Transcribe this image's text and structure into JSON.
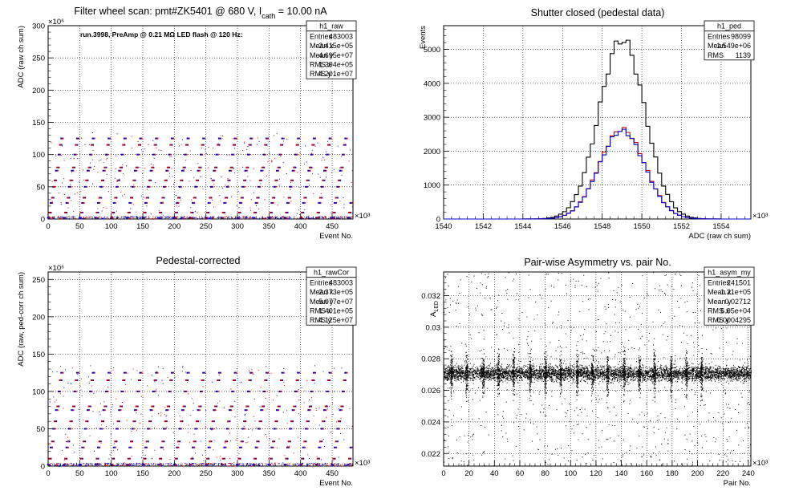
{
  "chart_data": [
    {
      "id": "raw",
      "type": "scatter",
      "title": "Filter wheel scan: pmt#ZK5401 @   680 V, I",
      "title_sub": "cath",
      "title_tail": " = 10.00 nA",
      "annotation": "run.3998, PreAmp @ 0.21 MΩ LED flash @  120 Hz:",
      "xlabel": "Event No.",
      "ylabel": "ADC (raw ch sum)",
      "x_exponent": "×10³",
      "y_exponent": "×10⁶",
      "xlim": [
        0,
        483
      ],
      "ylim": [
        0,
        300
      ],
      "x_ticks": [
        "0",
        "50",
        "100",
        "150",
        "200",
        "250",
        "300",
        "350",
        "400",
        "450"
      ],
      "y_ticks": [
        "0",
        "50",
        "100",
        "150",
        "200",
        "250",
        "300"
      ],
      "grid": true,
      "colors": {
        "series_a": "#0000cc",
        "series_b": "#cc0000"
      },
      "levels": [
        2,
        10,
        25,
        33,
        50,
        60,
        75,
        80,
        100,
        115,
        125
      ],
      "cycle_period": 25,
      "stats": {
        "name": "h1_raw",
        "rows": [
          {
            "label": "Entries",
            "value": "483003"
          },
          {
            "label": "Mean x",
            "value": "2.415e+05"
          },
          {
            "label": "Mean y",
            "value": "4.695e+07"
          },
          {
            "label": "RMS x",
            "value": "1.394e+05"
          },
          {
            "label": "RMS y",
            "value": "4.201e+07"
          }
        ]
      }
    },
    {
      "id": "ped",
      "type": "line",
      "title": "Shutter closed (pedestal data)",
      "xlabel": "ADC (raw ch sum)",
      "ylabel": "Events",
      "x_exponent": "×10³",
      "xlim": [
        1540,
        1555.5
      ],
      "ylim": [
        0,
        5700
      ],
      "x_ticks": [
        "1540",
        "1542",
        "1544",
        "1546",
        "1548",
        "1550",
        "1552",
        "1554"
      ],
      "y_ticks": [
        "0",
        "1000",
        "2000",
        "3000",
        "4000",
        "5000"
      ],
      "grid": true,
      "series": [
        {
          "color": "#000000",
          "mean": 1549.0,
          "sigma": 1.15,
          "peak": 5300
        },
        {
          "color": "#cc0000",
          "mean": 1549.0,
          "sigma": 1.15,
          "peak": 2650
        },
        {
          "color": "#0000cc",
          "mean": 1549.0,
          "sigma": 1.15,
          "peak": 2600
        }
      ],
      "bin_width": 0.2,
      "stats": {
        "name": "h1_ped",
        "rows": [
          {
            "label": "Entries",
            "value": "98099"
          },
          {
            "label": "Mean",
            "value": "1.549e+06"
          },
          {
            "label": "RMS",
            "value": "1139"
          }
        ]
      }
    },
    {
      "id": "rawCor",
      "type": "scatter",
      "title": "Pedestal-corrected",
      "xlabel": "Event No.",
      "ylabel": "ADC (raw, ped-corr ch sum)",
      "x_exponent": "×10³",
      "y_exponent": "×10⁶",
      "xlim": [
        0,
        483
      ],
      "ylim": [
        0,
        260
      ],
      "x_ticks": [
        "0",
        "50",
        "100",
        "150",
        "200",
        "250",
        "300",
        "350",
        "400",
        "450"
      ],
      "y_ticks": [
        "0",
        "50",
        "100",
        "150",
        "200",
        "250"
      ],
      "grid": true,
      "colors": {
        "series_a": "#0000cc",
        "series_b": "#cc0000"
      },
      "levels": [
        2,
        10,
        25,
        33,
        50,
        60,
        75,
        80,
        100,
        115,
        125
      ],
      "cycle_period": 25,
      "stats": {
        "name": "h1_rawCor",
        "rows": [
          {
            "label": "Entries",
            "value": "483003"
          },
          {
            "label": "Mean x",
            "value": "2.373e+05"
          },
          {
            "label": "Mean y",
            "value": "5.077e+07"
          },
          {
            "label": "RMS x",
            "value": "1.401e+05"
          },
          {
            "label": "RMS y",
            "value": "4.125e+07"
          }
        ]
      }
    },
    {
      "id": "asym",
      "type": "scatter",
      "title": "Pair-wise Asymmetry vs. pair No.",
      "xlabel": "Pair No.",
      "ylabel": "A",
      "ylabel_sub": "LED",
      "x_exponent": "×10³",
      "xlim": [
        0,
        242
      ],
      "ylim": [
        0.0212,
        0.0335
      ],
      "x_ticks": [
        "0",
        "20",
        "40",
        "60",
        "80",
        "100",
        "120",
        "140",
        "160",
        "180",
        "200",
        "220",
        "240"
      ],
      "y_ticks": [
        "0.022",
        "0.024",
        "0.026",
        "0.028",
        "0.03",
        "0.032"
      ],
      "y_tick_values": [
        0.022,
        0.024,
        0.026,
        0.028,
        0.03,
        0.032
      ],
      "grid": true,
      "band": {
        "center": 0.0271,
        "half_width": 0.0006
      },
      "spike_positions": [
        6,
        18,
        31,
        43,
        55,
        68,
        80,
        92,
        105,
        117,
        129,
        142,
        154,
        166,
        179,
        191,
        203
      ],
      "stats": {
        "name": "h1_asym_my",
        "rows": [
          {
            "label": "Entries",
            "value": "241501"
          },
          {
            "label": "Mean x",
            "value": "1.21e+05"
          },
          {
            "label": "Mean y",
            "value": "0.02712"
          },
          {
            "label": "RMS x",
            "value": "6.95e+04"
          },
          {
            "label": "RMS y",
            "value": "0.0004295"
          }
        ]
      }
    }
  ]
}
